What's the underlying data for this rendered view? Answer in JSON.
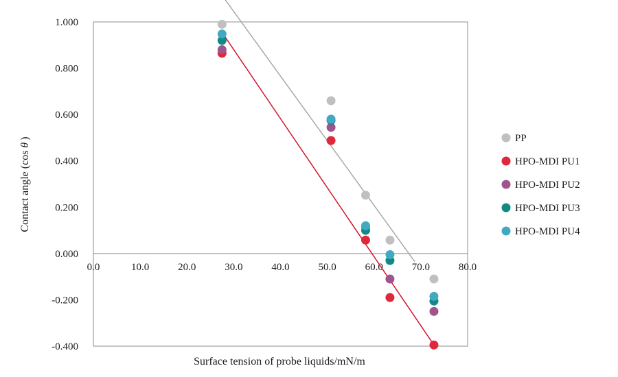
{
  "chart_data": {
    "type": "scatter",
    "title": "",
    "xlabel": "Surface tension of probe liquids/mN/m",
    "ylabel_prefix": "Contact angle (cos",
    "ylabel_symbol": "θ",
    "ylabel_suffix": ")",
    "xlim": [
      0,
      80
    ],
    "ylim": [
      -0.4,
      1.0
    ],
    "x_ticks": [
      "0.0",
      "10.0",
      "20.0",
      "30.0",
      "40.0",
      "50.0",
      "60.0",
      "70.0",
      "80.0"
    ],
    "y_ticks": [
      "1.000",
      "0.800",
      "0.600",
      "0.400",
      "0.200",
      "0.000",
      "-0.200",
      "-0.400"
    ],
    "x_tick_values": [
      0,
      10,
      20,
      30,
      40,
      50,
      60,
      70,
      80
    ],
    "y_tick_values": [
      1.0,
      0.8,
      0.6,
      0.4,
      0.2,
      0.0,
      -0.2,
      -0.4
    ],
    "x": [
      27.5,
      50.8,
      58.2,
      63.4,
      72.8
    ],
    "legend_position": "right",
    "series": [
      {
        "name": "PP",
        "color": "#c0c0c0",
        "values": [
          0.99,
          0.66,
          0.252,
          0.058,
          -0.11
        ]
      },
      {
        "name": "HPO-MDI PU1",
        "color": "#e0283c",
        "values": [
          0.865,
          0.488,
          0.058,
          -0.19,
          -0.395
        ]
      },
      {
        "name": "HPO-MDI PU2",
        "color": "#a0548e",
        "values": [
          0.88,
          0.545,
          0.115,
          -0.11,
          -0.25
        ]
      },
      {
        "name": "HPO-MDI PU3",
        "color": "#118a85",
        "values": [
          0.92,
          0.575,
          0.1,
          -0.03,
          -0.205
        ]
      },
      {
        "name": "HPO-MDI PU4",
        "color": "#42a9c2",
        "values": [
          0.948,
          0.58,
          0.12,
          -0.005,
          -0.185
        ]
      }
    ],
    "trendlines": [
      {
        "name": "PP trend",
        "color": "#a8a8a8",
        "x": [
          27.5,
          68.7
        ],
        "y": [
          1.115,
          -0.035
        ]
      },
      {
        "name": "HPO-MDI PU1 trend",
        "color": "#d2142e",
        "x": [
          27.5,
          72.8
        ],
        "y": [
          0.955,
          -0.395
        ]
      }
    ]
  }
}
